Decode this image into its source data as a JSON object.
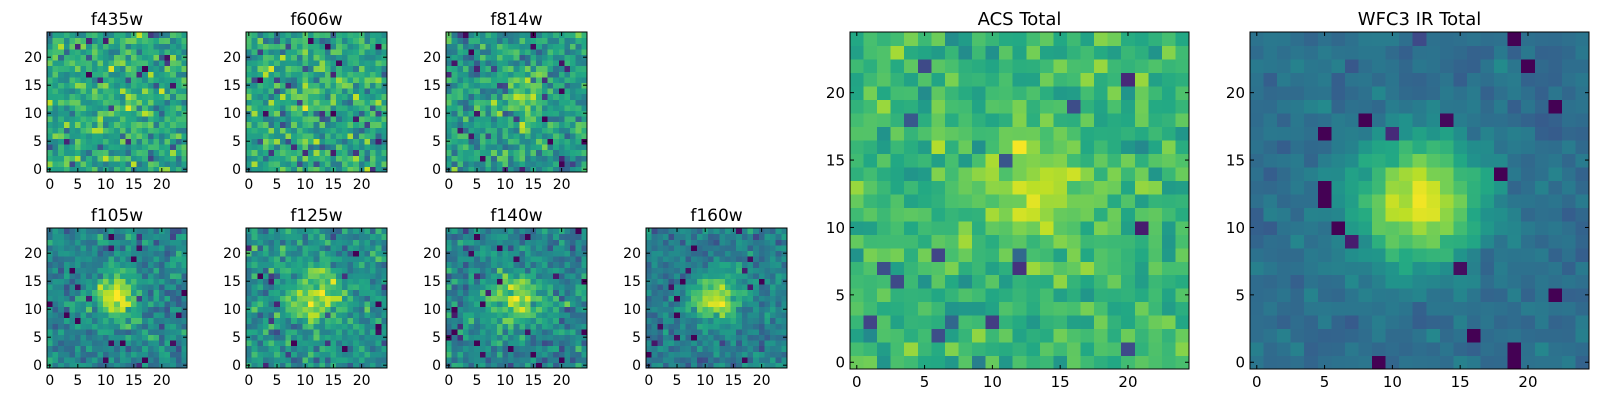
{
  "chart_data": [
    {
      "type": "heatmap",
      "title": "f435w",
      "colormap": "viridis",
      "grid_size": 25,
      "xticks": [
        0,
        5,
        10,
        15,
        20
      ],
      "yticks": [
        0,
        5,
        10,
        15,
        20
      ],
      "xlim": [
        0,
        24
      ],
      "ylim": [
        0,
        24
      ],
      "source": {
        "x": 12,
        "y": 12
      },
      "peak_strength": 0.05,
      "core_radius": 3.0,
      "noise": 0.22,
      "baseline": 0.62,
      "seed": 11
    },
    {
      "type": "heatmap",
      "title": "f606w",
      "colormap": "viridis",
      "grid_size": 25,
      "xticks": [
        0,
        5,
        10,
        15,
        20
      ],
      "yticks": [
        0,
        5,
        10,
        15,
        20
      ],
      "xlim": [
        0,
        24
      ],
      "ylim": [
        0,
        24
      ],
      "source": {
        "x": 12,
        "y": 13
      },
      "peak_strength": 0.12,
      "core_radius": 3.0,
      "noise": 0.24,
      "baseline": 0.58,
      "seed": 23
    },
    {
      "type": "heatmap",
      "title": "f814w",
      "colormap": "viridis",
      "grid_size": 25,
      "xticks": [
        0,
        5,
        10,
        15,
        20
      ],
      "yticks": [
        0,
        5,
        10,
        15,
        20
      ],
      "xlim": [
        0,
        24
      ],
      "ylim": [
        0,
        24
      ],
      "source": {
        "x": 13,
        "y": 13
      },
      "peak_strength": 0.25,
      "core_radius": 3.0,
      "noise": 0.22,
      "baseline": 0.55,
      "seed": 37
    },
    {
      "type": "heatmap",
      "title": "f105w",
      "colormap": "viridis",
      "grid_size": 25,
      "xticks": [
        0,
        5,
        10,
        15,
        20
      ],
      "yticks": [
        0,
        5,
        10,
        15,
        20
      ],
      "xlim": [
        0,
        24
      ],
      "ylim": [
        0,
        24
      ],
      "source": {
        "x": 12,
        "y": 12
      },
      "peak_strength": 0.45,
      "core_radius": 3.0,
      "noise": 0.18,
      "baseline": 0.45,
      "seed": 41
    },
    {
      "type": "heatmap",
      "title": "f125w",
      "colormap": "viridis",
      "grid_size": 25,
      "xticks": [
        0,
        5,
        10,
        15,
        20
      ],
      "yticks": [
        0,
        5,
        10,
        15,
        20
      ],
      "xlim": [
        0,
        24
      ],
      "ylim": [
        0,
        24
      ],
      "source": {
        "x": 12,
        "y": 12
      },
      "peak_strength": 0.35,
      "core_radius": 3.5,
      "noise": 0.2,
      "baseline": 0.5,
      "seed": 53
    },
    {
      "type": "heatmap",
      "title": "f140w",
      "colormap": "viridis",
      "grid_size": 25,
      "xticks": [
        0,
        5,
        10,
        15,
        20
      ],
      "yticks": [
        0,
        5,
        10,
        15,
        20
      ],
      "xlim": [
        0,
        24
      ],
      "ylim": [
        0,
        24
      ],
      "source": {
        "x": 12,
        "y": 12
      },
      "peak_strength": 0.45,
      "core_radius": 3.0,
      "noise": 0.18,
      "baseline": 0.45,
      "seed": 67
    },
    {
      "type": "heatmap",
      "title": "f160w",
      "colormap": "viridis",
      "grid_size": 25,
      "xticks": [
        0,
        5,
        10,
        15,
        20
      ],
      "yticks": [
        0,
        5,
        10,
        15,
        20
      ],
      "xlim": [
        0,
        24
      ],
      "ylim": [
        0,
        24
      ],
      "source": {
        "x": 12,
        "y": 12
      },
      "peak_strength": 0.5,
      "core_radius": 3.0,
      "noise": 0.15,
      "baseline": 0.42,
      "seed": 79
    },
    {
      "type": "heatmap",
      "title": "ACS Total",
      "colormap": "viridis",
      "grid_size": 25,
      "xticks": [
        0,
        5,
        10,
        15,
        20
      ],
      "yticks": [
        0,
        5,
        10,
        15,
        20
      ],
      "xlim": [
        0,
        24
      ],
      "ylim": [
        0,
        24
      ],
      "source": {
        "x": 13,
        "y": 13
      },
      "peak_strength": 0.25,
      "core_radius": 3.0,
      "noise": 0.14,
      "baseline": 0.66,
      "seed": 97
    },
    {
      "type": "heatmap",
      "title": "WFC3 IR Total",
      "colormap": "viridis",
      "grid_size": 25,
      "xticks": [
        0,
        5,
        10,
        15,
        20
      ],
      "yticks": [
        0,
        5,
        10,
        15,
        20
      ],
      "xlim": [
        0,
        24
      ],
      "ylim": [
        0,
        24
      ],
      "source": {
        "x": 12,
        "y": 12
      },
      "peak_strength": 0.62,
      "core_radius": 3.2,
      "noise": 0.07,
      "baseline": 0.36,
      "seed": 131
    }
  ]
}
